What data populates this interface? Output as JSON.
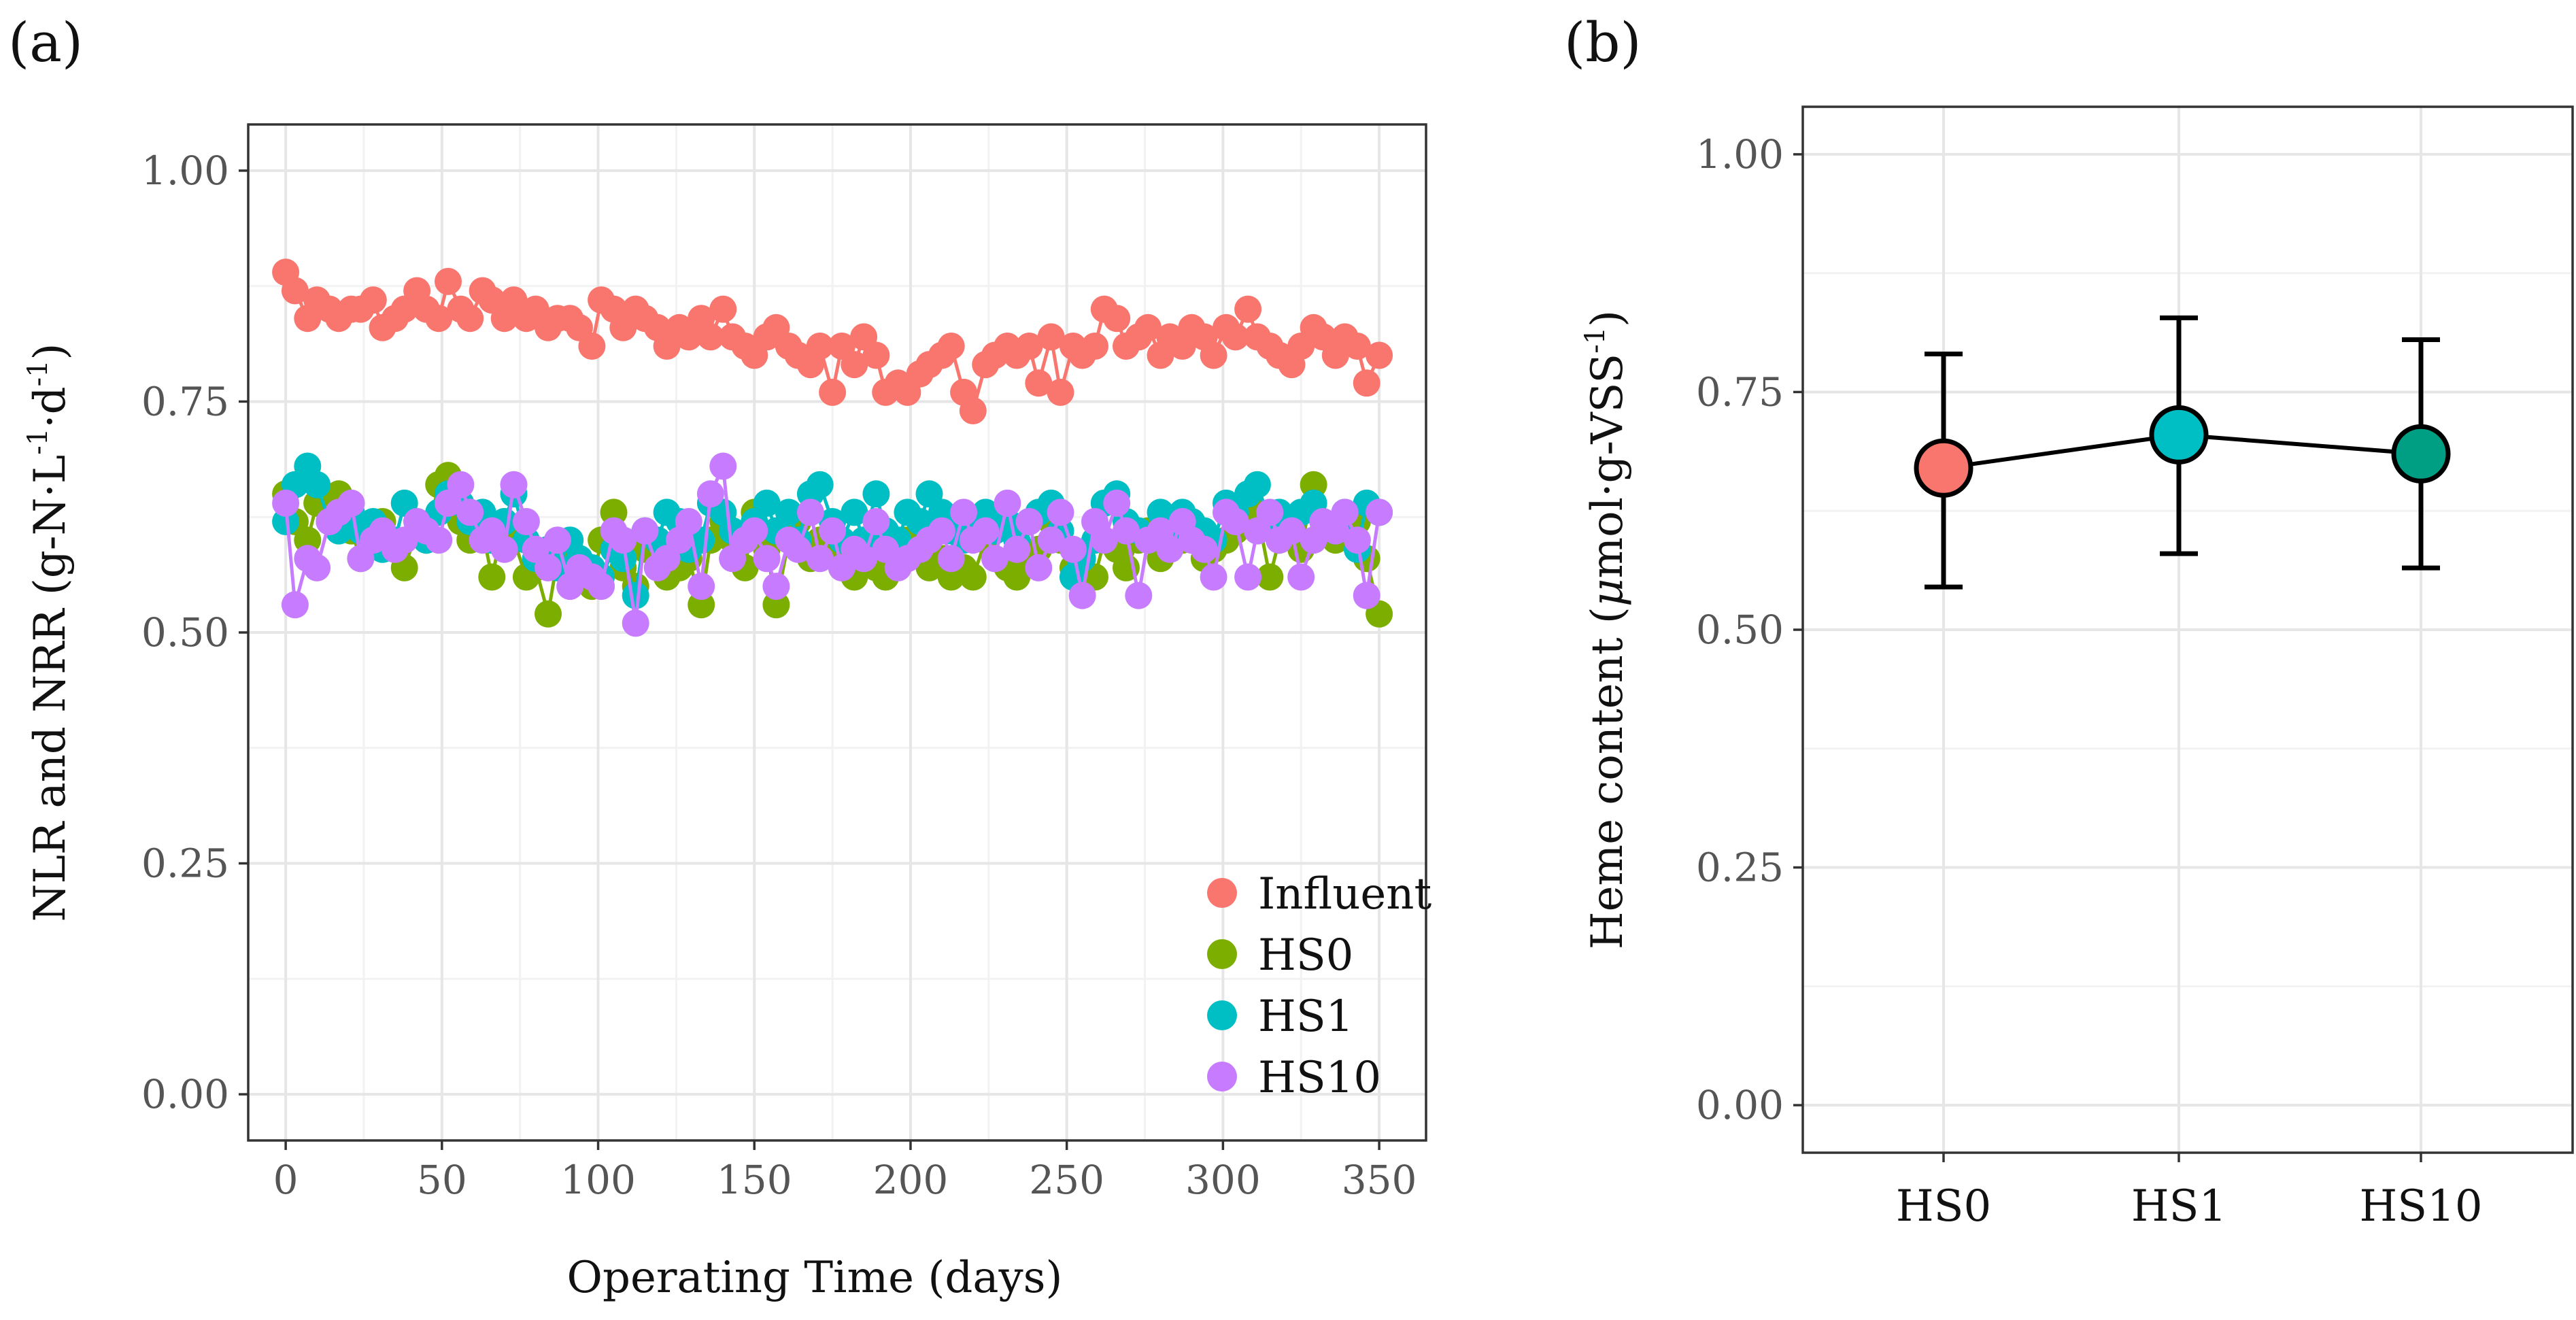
{
  "chart_data": [
    {
      "panel": "(a)",
      "type": "line",
      "xlabel": "Operating Time (days)",
      "ylabel_main": "NLR and NRR (g-N·L",
      "ylabel_sup1": "-1",
      "ylabel_mid": "·d",
      "ylabel_sup2": "-1",
      "ylabel_end": ")",
      "xlim": [
        -12,
        365
      ],
      "ylim": [
        -0.05,
        1.05
      ],
      "xticks": [
        0,
        50,
        100,
        150,
        200,
        250,
        300,
        350
      ],
      "yticks": [
        0.0,
        0.25,
        0.5,
        0.75,
        1.0
      ],
      "ytick_labels": [
        "0.00",
        "0.25",
        "0.50",
        "0.75",
        "1.00"
      ],
      "legend_position": "bottom-right",
      "series": [
        {
          "name": "Influent",
          "color": "#F8766D",
          "x": [
            0,
            3,
            7,
            10,
            14,
            17,
            21,
            24,
            28,
            31,
            35,
            38,
            42,
            45,
            49,
            52,
            56,
            59,
            63,
            66,
            70,
            73,
            77,
            80,
            84,
            87,
            91,
            94,
            98,
            101,
            105,
            108,
            112,
            115,
            119,
            122,
            126,
            129,
            133,
            136,
            140,
            143,
            147,
            150,
            154,
            157,
            161,
            164,
            168,
            171,
            175,
            178,
            182,
            185,
            189,
            192,
            196,
            199,
            203,
            206,
            210,
            213,
            217,
            220,
            224,
            227,
            231,
            234,
            238,
            241,
            245,
            248,
            252,
            255,
            259,
            262,
            266,
            269,
            273,
            276,
            280,
            283,
            287,
            290,
            294,
            297,
            301,
            304,
            308,
            311,
            315,
            318,
            322,
            325,
            329,
            332,
            336,
            339,
            343,
            346,
            350
          ],
          "y": [
            0.89,
            0.87,
            0.84,
            0.86,
            0.85,
            0.84,
            0.85,
            0.85,
            0.86,
            0.83,
            0.84,
            0.85,
            0.87,
            0.85,
            0.84,
            0.88,
            0.85,
            0.84,
            0.87,
            0.86,
            0.84,
            0.86,
            0.84,
            0.85,
            0.83,
            0.84,
            0.84,
            0.83,
            0.81,
            0.86,
            0.85,
            0.83,
            0.85,
            0.84,
            0.83,
            0.81,
            0.83,
            0.82,
            0.84,
            0.82,
            0.85,
            0.82,
            0.81,
            0.8,
            0.82,
            0.83,
            0.81,
            0.8,
            0.79,
            0.81,
            0.76,
            0.81,
            0.79,
            0.82,
            0.8,
            0.76,
            0.77,
            0.76,
            0.78,
            0.79,
            0.8,
            0.81,
            0.76,
            0.74,
            0.79,
            0.8,
            0.81,
            0.8,
            0.81,
            0.77,
            0.82,
            0.76,
            0.81,
            0.8,
            0.81,
            0.85,
            0.84,
            0.81,
            0.82,
            0.83,
            0.8,
            0.82,
            0.81,
            0.83,
            0.82,
            0.8,
            0.83,
            0.82,
            0.85,
            0.82,
            0.81,
            0.8,
            0.79,
            0.81,
            0.83,
            0.82,
            0.8,
            0.82,
            0.81,
            0.77,
            0.8
          ]
        },
        {
          "name": "HS0",
          "color": "#7CAE00",
          "x": [
            0,
            3,
            7,
            10,
            14,
            17,
            21,
            24,
            28,
            31,
            35,
            38,
            42,
            45,
            49,
            52,
            56,
            59,
            63,
            66,
            70,
            73,
            77,
            80,
            84,
            87,
            91,
            94,
            98,
            101,
            105,
            108,
            112,
            115,
            119,
            122,
            126,
            129,
            133,
            136,
            140,
            143,
            147,
            150,
            154,
            157,
            161,
            164,
            168,
            171,
            175,
            178,
            182,
            185,
            189,
            192,
            196,
            199,
            203,
            206,
            210,
            213,
            217,
            220,
            224,
            227,
            231,
            234,
            238,
            241,
            245,
            248,
            252,
            255,
            259,
            262,
            266,
            269,
            273,
            276,
            280,
            283,
            287,
            290,
            294,
            297,
            301,
            304,
            308,
            311,
            315,
            318,
            322,
            325,
            329,
            332,
            336,
            339,
            343,
            346,
            350
          ],
          "y": [
            0.65,
            0.62,
            0.6,
            0.64,
            0.62,
            0.65,
            0.61,
            0.58,
            0.6,
            0.62,
            0.59,
            0.57,
            0.61,
            0.6,
            0.66,
            0.67,
            0.62,
            0.6,
            0.61,
            0.56,
            0.62,
            0.6,
            0.56,
            0.57,
            0.52,
            0.58,
            0.59,
            0.56,
            0.55,
            0.6,
            0.63,
            0.57,
            0.55,
            0.59,
            0.6,
            0.56,
            0.57,
            0.58,
            0.53,
            0.6,
            0.62,
            0.6,
            0.57,
            0.63,
            0.59,
            0.53,
            0.6,
            0.62,
            0.58,
            0.6,
            0.59,
            0.57,
            0.56,
            0.6,
            0.57,
            0.56,
            0.58,
            0.6,
            0.59,
            0.57,
            0.58,
            0.56,
            0.57,
            0.56,
            0.6,
            0.58,
            0.57,
            0.56,
            0.58,
            0.59,
            0.62,
            0.6,
            0.57,
            0.58,
            0.56,
            0.6,
            0.59,
            0.57,
            0.6,
            0.61,
            0.58,
            0.59,
            0.6,
            0.62,
            0.58,
            0.59,
            0.6,
            0.61,
            0.62,
            0.63,
            0.56,
            0.6,
            0.62,
            0.59,
            0.66,
            0.61,
            0.6,
            0.61,
            0.62,
            0.58,
            0.52
          ]
        },
        {
          "name": "HS1",
          "color": "#00BFC4",
          "x": [
            0,
            3,
            7,
            10,
            14,
            17,
            21,
            24,
            28,
            31,
            35,
            38,
            42,
            45,
            49,
            52,
            56,
            59,
            63,
            66,
            70,
            73,
            77,
            80,
            84,
            87,
            91,
            94,
            98,
            101,
            105,
            108,
            112,
            115,
            119,
            122,
            126,
            129,
            133,
            136,
            140,
            143,
            147,
            150,
            154,
            157,
            161,
            164,
            168,
            171,
            175,
            178,
            182,
            185,
            189,
            192,
            196,
            199,
            203,
            206,
            210,
            213,
            217,
            220,
            224,
            227,
            231,
            234,
            238,
            241,
            245,
            248,
            252,
            255,
            259,
            262,
            266,
            269,
            273,
            276,
            280,
            283,
            287,
            290,
            294,
            297,
            301,
            304,
            308,
            311,
            315,
            318,
            322,
            325,
            329,
            332,
            336,
            339,
            343,
            346,
            350
          ],
          "y": [
            0.62,
            0.66,
            0.68,
            0.66,
            0.62,
            0.61,
            0.63,
            0.61,
            0.62,
            0.59,
            0.6,
            0.64,
            0.62,
            0.6,
            0.63,
            0.65,
            0.64,
            0.62,
            0.63,
            0.6,
            0.62,
            0.65,
            0.6,
            0.58,
            0.59,
            0.57,
            0.6,
            0.58,
            0.57,
            0.56,
            0.59,
            0.58,
            0.54,
            0.61,
            0.6,
            0.63,
            0.62,
            0.59,
            0.6,
            0.64,
            0.63,
            0.61,
            0.6,
            0.62,
            0.64,
            0.61,
            0.63,
            0.6,
            0.65,
            0.66,
            0.62,
            0.6,
            0.63,
            0.6,
            0.65,
            0.61,
            0.6,
            0.63,
            0.62,
            0.65,
            0.63,
            0.61,
            0.6,
            0.62,
            0.63,
            0.61,
            0.62,
            0.6,
            0.62,
            0.63,
            0.64,
            0.61,
            0.56,
            0.58,
            0.6,
            0.64,
            0.65,
            0.62,
            0.61,
            0.6,
            0.63,
            0.61,
            0.63,
            0.62,
            0.61,
            0.6,
            0.64,
            0.63,
            0.65,
            0.66,
            0.62,
            0.63,
            0.61,
            0.63,
            0.64,
            0.62,
            0.61,
            0.63,
            0.59,
            0.64,
            0.63
          ]
        },
        {
          "name": "HS10",
          "color": "#C77CFF",
          "x": [
            0,
            3,
            7,
            10,
            14,
            17,
            21,
            24,
            28,
            31,
            35,
            38,
            42,
            45,
            49,
            52,
            56,
            59,
            63,
            66,
            70,
            73,
            77,
            80,
            84,
            87,
            91,
            94,
            98,
            101,
            105,
            108,
            112,
            115,
            119,
            122,
            126,
            129,
            133,
            136,
            140,
            143,
            147,
            150,
            154,
            157,
            161,
            164,
            168,
            171,
            175,
            178,
            182,
            185,
            189,
            192,
            196,
            199,
            203,
            206,
            210,
            213,
            217,
            220,
            224,
            227,
            231,
            234,
            238,
            241,
            245,
            248,
            252,
            255,
            259,
            262,
            266,
            269,
            273,
            276,
            280,
            283,
            287,
            290,
            294,
            297,
            301,
            304,
            308,
            311,
            315,
            318,
            322,
            325,
            329,
            332,
            336,
            339,
            343,
            346,
            350
          ],
          "y": [
            0.64,
            0.53,
            0.58,
            0.57,
            0.62,
            0.63,
            0.64,
            0.58,
            0.6,
            0.61,
            0.59,
            0.6,
            0.62,
            0.61,
            0.6,
            0.64,
            0.66,
            0.63,
            0.6,
            0.61,
            0.59,
            0.66,
            0.62,
            0.59,
            0.57,
            0.6,
            0.55,
            0.57,
            0.56,
            0.55,
            0.61,
            0.6,
            0.51,
            0.61,
            0.57,
            0.58,
            0.6,
            0.62,
            0.55,
            0.65,
            0.68,
            0.58,
            0.6,
            0.61,
            0.58,
            0.55,
            0.6,
            0.59,
            0.63,
            0.58,
            0.61,
            0.57,
            0.59,
            0.58,
            0.62,
            0.59,
            0.57,
            0.58,
            0.59,
            0.6,
            0.61,
            0.58,
            0.63,
            0.6,
            0.61,
            0.58,
            0.64,
            0.59,
            0.62,
            0.57,
            0.6,
            0.63,
            0.59,
            0.54,
            0.62,
            0.6,
            0.64,
            0.61,
            0.54,
            0.6,
            0.61,
            0.59,
            0.62,
            0.6,
            0.59,
            0.56,
            0.63,
            0.62,
            0.56,
            0.61,
            0.63,
            0.6,
            0.61,
            0.56,
            0.6,
            0.62,
            0.61,
            0.63,
            0.6,
            0.54,
            0.63
          ]
        }
      ]
    },
    {
      "panel": "(b)",
      "type": "scatter",
      "xlabel": "",
      "ylabel_main": "Heme content (",
      "ylabel_mu": "μ",
      "ylabel_unit": "mol·g-VSS",
      "ylabel_sup": "-1",
      "ylabel_end": ")",
      "categories": [
        "HS0",
        "HS1",
        "HS10"
      ],
      "values": [
        0.67,
        0.705,
        0.685
      ],
      "err_low": [
        0.545,
        0.58,
        0.565
      ],
      "err_high": [
        0.79,
        0.828,
        0.805
      ],
      "colors": [
        "#F8766D",
        "#00BFC4",
        "#009E83"
      ],
      "ylim": [
        -0.05,
        1.05
      ],
      "yticks": [
        0.0,
        0.25,
        0.5,
        0.75,
        1.0
      ],
      "ytick_labels": [
        "0.00",
        "0.25",
        "0.50",
        "0.75",
        "1.00"
      ]
    }
  ]
}
